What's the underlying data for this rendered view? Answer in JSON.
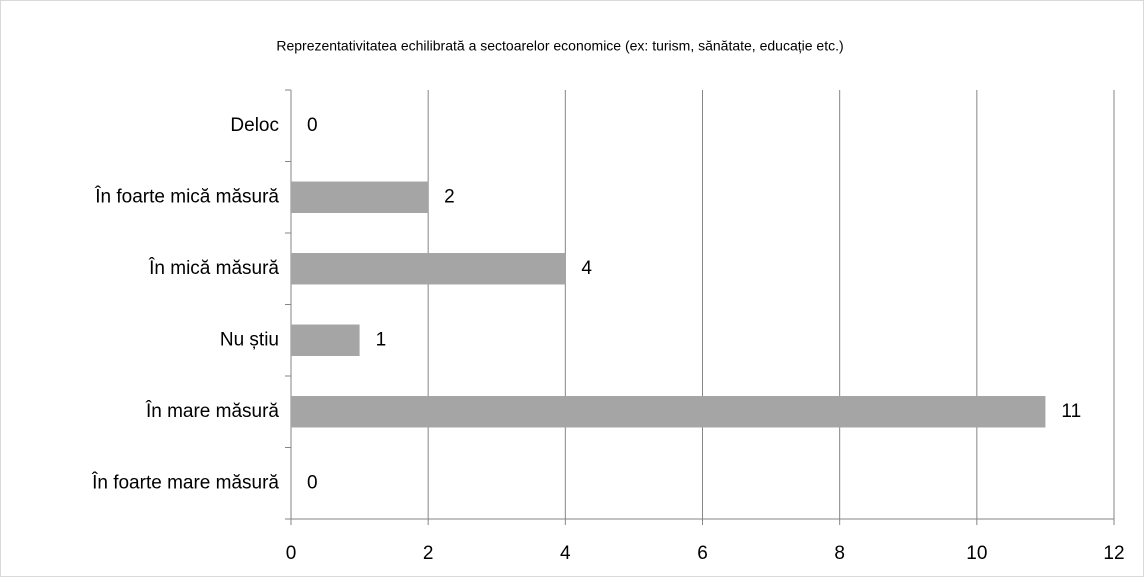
{
  "chart_data": {
    "type": "bar",
    "orientation": "horizontal",
    "title": "Reprezentativitatea echilibrată a sectoarelor economice (ex: turism, sănătate, educație etc.)",
    "categories": [
      "Deloc",
      "În foarte mică măsură",
      "În mică măsură",
      "Nu știu",
      "În mare măsură",
      "În foarte mare măsură"
    ],
    "values": [
      0,
      2,
      4,
      1,
      11,
      0
    ],
    "color": "#a5a5a5",
    "xlim": [
      0,
      12
    ],
    "xticks": [
      0,
      2,
      4,
      6,
      8,
      10,
      12
    ],
    "grid": true
  }
}
